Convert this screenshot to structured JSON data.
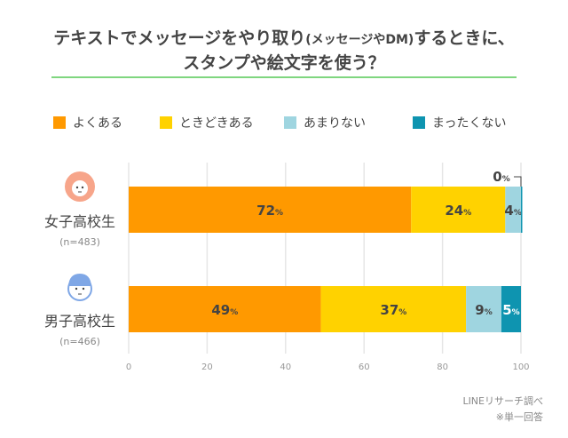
{
  "title": {
    "line1_a": "テキストでメッセージをやり取り",
    "line1_b": "(メッセージやDM)",
    "line1_c": "するときに、",
    "line2": "スタンプや絵文字を使う？"
  },
  "source": "LINEリサーチ調べ",
  "note": "※単一回答",
  "chart_data": {
    "type": "bar",
    "orientation": "horizontal",
    "stacked": true,
    "categories": [
      "女子高校生",
      "男子高校生"
    ],
    "category_notes": [
      "(n=483)",
      "(n=466)"
    ],
    "category_icons": [
      "girl-face-icon",
      "boy-face-icon"
    ],
    "series": [
      {
        "name": "よくある",
        "values": [
          72,
          49
        ],
        "color": "#FF9900"
      },
      {
        "name": "ときどきある",
        "values": [
          24,
          37
        ],
        "color": "#FFD200"
      },
      {
        "name": "あまりない",
        "values": [
          4,
          9
        ],
        "color": "#9FD5E0"
      },
      {
        "name": "まったくない",
        "values": [
          0,
          5
        ],
        "color": "#0E94B0"
      }
    ],
    "unit": "%",
    "xlim": [
      0,
      100
    ],
    "xticks": [
      "0",
      "20",
      "40",
      "60",
      "80",
      "100"
    ],
    "grid": true,
    "legend": "top"
  }
}
